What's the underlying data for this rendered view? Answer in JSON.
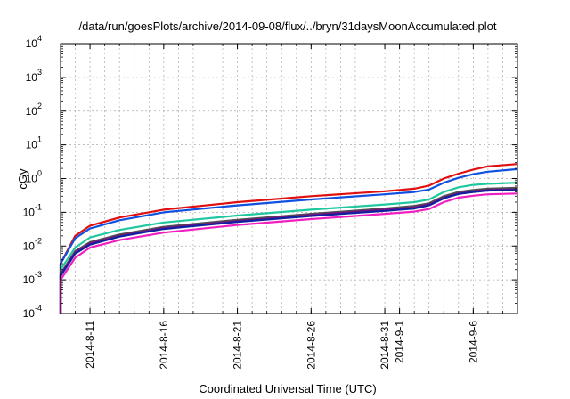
{
  "chart_data": {
    "type": "line",
    "title": "/data/run/goesPlots/archive/2014-09-08/flux/../bryn/31daysMoonAccumulated.plot",
    "xlabel": "Coordinated Universal Time (UTC)",
    "ylabel": "cGy",
    "yscale": "log",
    "ylim": [
      0.0001,
      10000
    ],
    "xlim": [
      "2014-08-09",
      "2014-09-09"
    ],
    "grid": true,
    "legend": "none",
    "y_ticks": [
      {
        "base": "10",
        "exp": "-4"
      },
      {
        "base": "10",
        "exp": "-3"
      },
      {
        "base": "10",
        "exp": "-2"
      },
      {
        "base": "10",
        "exp": "-1"
      },
      {
        "base": "10",
        "exp": "0"
      },
      {
        "base": "10",
        "exp": "1"
      },
      {
        "base": "10",
        "exp": "2"
      },
      {
        "base": "10",
        "exp": "3"
      },
      {
        "base": "10",
        "exp": "4"
      }
    ],
    "x_ticks": [
      {
        "date": "2014-08-11",
        "label": "2014-8-11"
      },
      {
        "date": "2014-08-16",
        "label": "2014-8-16"
      },
      {
        "date": "2014-08-21",
        "label": "2014-8-21"
      },
      {
        "date": "2014-08-26",
        "label": "2014-8-26"
      },
      {
        "date": "2014-08-31",
        "label": "2014-8-31"
      },
      {
        "date": "2014-09-01",
        "label": "2014-9-1"
      },
      {
        "date": "2014-09-06",
        "label": "2014-9-6"
      }
    ],
    "series": [
      {
        "color": "#e01010",
        "points": [
          [
            "2014-08-09",
            0.0001
          ],
          [
            "2014-08-09",
            0.003
          ],
          [
            "2014-08-10",
            0.02
          ],
          [
            "2014-08-11",
            0.04
          ],
          [
            "2014-08-13",
            0.07
          ],
          [
            "2014-08-16",
            0.12
          ],
          [
            "2014-08-21",
            0.2
          ],
          [
            "2014-08-26",
            0.3
          ],
          [
            "2014-08-31",
            0.42
          ],
          [
            "2014-09-02",
            0.5
          ],
          [
            "2014-09-03",
            0.62
          ],
          [
            "2014-09-04",
            1.0
          ],
          [
            "2014-09-05",
            1.4
          ],
          [
            "2014-09-06",
            1.85
          ],
          [
            "2014-09-07",
            2.3
          ],
          [
            "2014-09-09",
            2.7
          ]
        ]
      },
      {
        "color": "#1050e0",
        "points": [
          [
            "2014-08-09",
            0.0001
          ],
          [
            "2014-08-09",
            0.003
          ],
          [
            "2014-08-10",
            0.017
          ],
          [
            "2014-08-11",
            0.033
          ],
          [
            "2014-08-13",
            0.058
          ],
          [
            "2014-08-16",
            0.1
          ],
          [
            "2014-08-21",
            0.16
          ],
          [
            "2014-08-26",
            0.24
          ],
          [
            "2014-08-31",
            0.34
          ],
          [
            "2014-09-02",
            0.4
          ],
          [
            "2014-09-03",
            0.47
          ],
          [
            "2014-09-04",
            0.75
          ],
          [
            "2014-09-05",
            1.05
          ],
          [
            "2014-09-06",
            1.35
          ],
          [
            "2014-09-07",
            1.6
          ],
          [
            "2014-09-09",
            1.9
          ]
        ]
      },
      {
        "color": "#20c8a0",
        "points": [
          [
            "2014-08-09",
            0.0001
          ],
          [
            "2014-08-09",
            0.002
          ],
          [
            "2014-08-10",
            0.009
          ],
          [
            "2014-08-11",
            0.018
          ],
          [
            "2014-08-13",
            0.03
          ],
          [
            "2014-08-16",
            0.05
          ],
          [
            "2014-08-21",
            0.08
          ],
          [
            "2014-08-26",
            0.12
          ],
          [
            "2014-08-31",
            0.17
          ],
          [
            "2014-09-02",
            0.2
          ],
          [
            "2014-09-03",
            0.24
          ],
          [
            "2014-09-04",
            0.4
          ],
          [
            "2014-09-05",
            0.55
          ],
          [
            "2014-09-06",
            0.65
          ],
          [
            "2014-09-07",
            0.7
          ],
          [
            "2014-09-09",
            0.75
          ]
        ]
      },
      {
        "color": "#505050",
        "points": [
          [
            "2014-08-09",
            0.0001
          ],
          [
            "2014-08-09",
            0.0015
          ],
          [
            "2014-08-10",
            0.007
          ],
          [
            "2014-08-11",
            0.013
          ],
          [
            "2014-08-13",
            0.022
          ],
          [
            "2014-08-16",
            0.037
          ],
          [
            "2014-08-21",
            0.06
          ],
          [
            "2014-08-26",
            0.09
          ],
          [
            "2014-08-31",
            0.13
          ],
          [
            "2014-09-02",
            0.155
          ],
          [
            "2014-09-03",
            0.185
          ],
          [
            "2014-09-04",
            0.3
          ],
          [
            "2014-09-05",
            0.4
          ],
          [
            "2014-09-06",
            0.46
          ],
          [
            "2014-09-07",
            0.5
          ],
          [
            "2014-09-09",
            0.53
          ]
        ]
      },
      {
        "color": "#7a1080",
        "points": [
          [
            "2014-08-09",
            0.0001
          ],
          [
            "2014-08-09",
            0.0014
          ],
          [
            "2014-08-10",
            0.0065
          ],
          [
            "2014-08-11",
            0.012
          ],
          [
            "2014-08-13",
            0.02
          ],
          [
            "2014-08-16",
            0.034
          ],
          [
            "2014-08-21",
            0.055
          ],
          [
            "2014-08-26",
            0.083
          ],
          [
            "2014-08-31",
            0.12
          ],
          [
            "2014-09-02",
            0.14
          ],
          [
            "2014-09-03",
            0.17
          ],
          [
            "2014-09-04",
            0.27
          ],
          [
            "2014-09-05",
            0.36
          ],
          [
            "2014-09-06",
            0.42
          ],
          [
            "2014-09-07",
            0.46
          ],
          [
            "2014-09-09",
            0.48
          ]
        ]
      },
      {
        "color": "#1020a0",
        "points": [
          [
            "2014-08-09",
            0.0001
          ],
          [
            "2014-08-09",
            0.0013
          ],
          [
            "2014-08-10",
            0.006
          ],
          [
            "2014-08-11",
            0.011
          ],
          [
            "2014-08-13",
            0.019
          ],
          [
            "2014-08-16",
            0.032
          ],
          [
            "2014-08-21",
            0.052
          ],
          [
            "2014-08-26",
            0.078
          ],
          [
            "2014-08-31",
            0.11
          ],
          [
            "2014-09-02",
            0.13
          ],
          [
            "2014-09-03",
            0.16
          ],
          [
            "2014-09-04",
            0.26
          ],
          [
            "2014-09-05",
            0.35
          ],
          [
            "2014-09-06",
            0.4
          ],
          [
            "2014-09-07",
            0.44
          ],
          [
            "2014-09-09",
            0.46
          ]
        ]
      },
      {
        "color": "#f020c0",
        "points": [
          [
            "2014-08-09",
            0.0001
          ],
          [
            "2014-08-09",
            0.001
          ],
          [
            "2014-08-10",
            0.0045
          ],
          [
            "2014-08-11",
            0.009
          ],
          [
            "2014-08-13",
            0.015
          ],
          [
            "2014-08-16",
            0.025
          ],
          [
            "2014-08-21",
            0.042
          ],
          [
            "2014-08-26",
            0.063
          ],
          [
            "2014-08-31",
            0.09
          ],
          [
            "2014-09-02",
            0.105
          ],
          [
            "2014-09-03",
            0.125
          ],
          [
            "2014-09-04",
            0.2
          ],
          [
            "2014-09-05",
            0.27
          ],
          [
            "2014-09-06",
            0.31
          ],
          [
            "2014-09-07",
            0.34
          ],
          [
            "2014-09-09",
            0.36
          ]
        ]
      }
    ]
  }
}
